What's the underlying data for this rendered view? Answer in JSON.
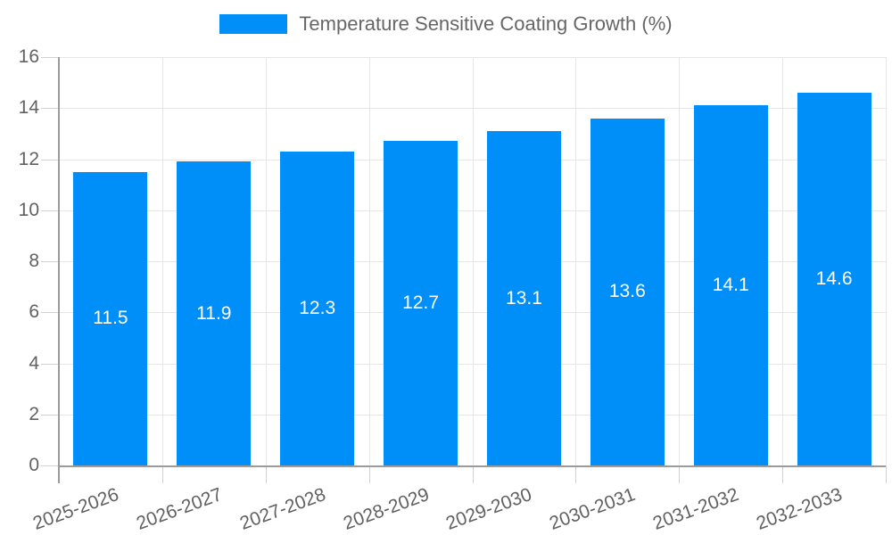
{
  "legend": {
    "label": "Temperature Sensitive Coating Growth (%)"
  },
  "colors": {
    "bar": "#008ff8",
    "grid": "#e6e6e6",
    "tick_mark": "#d2d2d2",
    "axis": "#9b9b9b",
    "text": "#616161",
    "value_label": "#ffffff",
    "background": "#ffffff"
  },
  "chart_data": {
    "type": "bar",
    "title": "",
    "series_name": "Temperature Sensitive Coating Growth (%)",
    "categories": [
      "2025-2026",
      "2026-2027",
      "2027-2028",
      "2028-2029",
      "2029-2030",
      "2030-2031",
      "2031-2032",
      "2032-2033"
    ],
    "values": [
      11.5,
      11.9,
      12.3,
      12.7,
      13.1,
      13.6,
      14.1,
      14.6
    ],
    "value_label_format": "one-decimal",
    "value_label_position": "inside-center",
    "xlabel": "",
    "ylabel": "",
    "ylim": [
      0,
      16
    ],
    "yticks": [
      0,
      2,
      4,
      6,
      8,
      10,
      12,
      14,
      16
    ],
    "grid": true,
    "grid_vertical": true,
    "legend_position": "top-center",
    "x_tick_rotation_deg": -20
  }
}
